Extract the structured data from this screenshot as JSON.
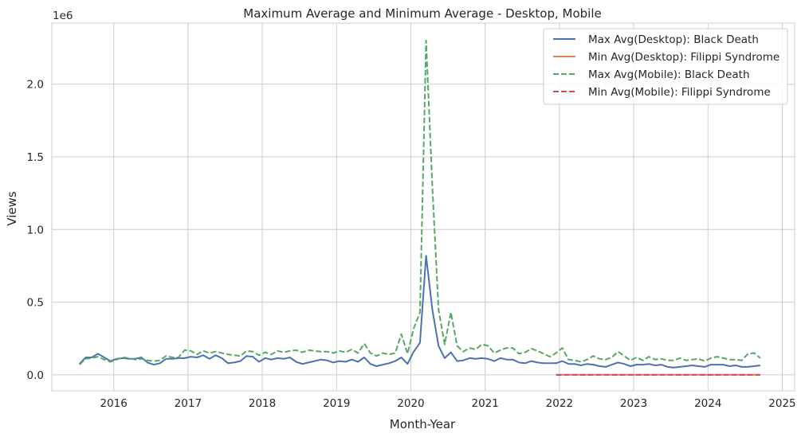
{
  "chart_data": {
    "type": "line",
    "title": "Maximum Average and Minimum Average - Desktop, Mobile",
    "xlabel": "Month-Year",
    "ylabel": "Views",
    "y_offset_label": "1e6",
    "xlim": [
      "2015-03-01",
      "2025-03-01"
    ],
    "ylim": [
      -110000,
      2420000
    ],
    "x_ticks": [
      "2016",
      "2017",
      "2018",
      "2019",
      "2020",
      "2021",
      "2022",
      "2023",
      "2024",
      "2025"
    ],
    "y_ticks": [
      {
        "value": 0,
        "label": "0.0"
      },
      {
        "value": 500000,
        "label": "0.5"
      },
      {
        "value": 1000000,
        "label": "1.0"
      },
      {
        "value": 1500000,
        "label": "1.5"
      },
      {
        "value": 2000000,
        "label": "2.0"
      }
    ],
    "grid": true,
    "legend_position": "top-right",
    "series": [
      {
        "name": "Max Avg(Desktop): Black Death",
        "color": "#4c72b0",
        "dash": "solid",
        "x": [
          "2015-07",
          "2015-08",
          "2015-09",
          "2015-10",
          "2015-11",
          "2015-12",
          "2016-01",
          "2016-02",
          "2016-03",
          "2016-04",
          "2016-05",
          "2016-06",
          "2016-07",
          "2016-08",
          "2016-09",
          "2016-10",
          "2016-11",
          "2016-12",
          "2017-01",
          "2017-02",
          "2017-03",
          "2017-04",
          "2017-05",
          "2017-06",
          "2017-07",
          "2017-08",
          "2017-09",
          "2017-10",
          "2017-11",
          "2017-12",
          "2018-01",
          "2018-02",
          "2018-03",
          "2018-04",
          "2018-05",
          "2018-06",
          "2018-07",
          "2018-08",
          "2018-09",
          "2018-10",
          "2018-11",
          "2018-12",
          "2019-01",
          "2019-02",
          "2019-03",
          "2019-04",
          "2019-05",
          "2019-06",
          "2019-07",
          "2019-08",
          "2019-09",
          "2019-10",
          "2019-11",
          "2019-12",
          "2020-01",
          "2020-02",
          "2020-03",
          "2020-04",
          "2020-05",
          "2020-06",
          "2020-07",
          "2020-08",
          "2020-09",
          "2020-10",
          "2020-11",
          "2020-12",
          "2021-01",
          "2021-02",
          "2021-03",
          "2021-04",
          "2021-05",
          "2021-06",
          "2021-07",
          "2021-08",
          "2021-09",
          "2021-10",
          "2021-11",
          "2021-12",
          "2022-01",
          "2022-02",
          "2022-03",
          "2022-04",
          "2022-05",
          "2022-06",
          "2022-07",
          "2022-08",
          "2022-09",
          "2022-10",
          "2022-11",
          "2022-12",
          "2023-01",
          "2023-02",
          "2023-03",
          "2023-04",
          "2023-05",
          "2023-06",
          "2023-07",
          "2023-08",
          "2023-09",
          "2023-10",
          "2023-11",
          "2023-12",
          "2024-01",
          "2024-02",
          "2024-03",
          "2024-04",
          "2024-05",
          "2024-06",
          "2024-07",
          "2024-08",
          "2024-09"
        ],
        "values": [
          75000,
          120000,
          120000,
          145000,
          120000,
          95000,
          110000,
          115000,
          110000,
          110000,
          120000,
          85000,
          70000,
          80000,
          110000,
          110000,
          115000,
          115000,
          125000,
          120000,
          135000,
          110000,
          135000,
          115000,
          80000,
          85000,
          95000,
          130000,
          125000,
          90000,
          115000,
          105000,
          115000,
          110000,
          120000,
          90000,
          75000,
          85000,
          95000,
          105000,
          100000,
          85000,
          95000,
          90000,
          105000,
          90000,
          120000,
          75000,
          60000,
          70000,
          80000,
          95000,
          120000,
          75000,
          160000,
          220000,
          820000,
          450000,
          200000,
          115000,
          155000,
          95000,
          100000,
          115000,
          110000,
          115000,
          110000,
          95000,
          115000,
          105000,
          105000,
          85000,
          80000,
          95000,
          85000,
          80000,
          80000,
          80000,
          95000,
          75000,
          75000,
          65000,
          75000,
          70000,
          60000,
          55000,
          70000,
          85000,
          75000,
          60000,
          70000,
          70000,
          75000,
          65000,
          70000,
          55000,
          50000,
          55000,
          60000,
          65000,
          60000,
          55000,
          70000,
          70000,
          70000,
          60000,
          65000,
          55000,
          55000,
          60000,
          65000
        ]
      },
      {
        "name": "Min Avg(Desktop): Filippi Syndrome",
        "color": "#dd8452",
        "dash": "solid",
        "x": [
          "2021-12",
          "2022-06",
          "2022-12",
          "2023-06",
          "2023-12",
          "2024-06",
          "2024-09"
        ],
        "values": [
          200,
          200,
          200,
          200,
          200,
          200,
          200
        ]
      },
      {
        "name": "Max Avg(Mobile): Black Death",
        "color": "#55a868",
        "dash": "dashed",
        "x": [
          "2015-07",
          "2015-08",
          "2015-09",
          "2015-10",
          "2015-11",
          "2015-12",
          "2016-01",
          "2016-02",
          "2016-03",
          "2016-04",
          "2016-05",
          "2016-06",
          "2016-07",
          "2016-08",
          "2016-09",
          "2016-10",
          "2016-11",
          "2016-12",
          "2017-01",
          "2017-02",
          "2017-03",
          "2017-04",
          "2017-05",
          "2017-06",
          "2017-07",
          "2017-08",
          "2017-09",
          "2017-10",
          "2017-11",
          "2017-12",
          "2018-01",
          "2018-02",
          "2018-03",
          "2018-04",
          "2018-05",
          "2018-06",
          "2018-07",
          "2018-08",
          "2018-09",
          "2018-10",
          "2018-11",
          "2018-12",
          "2019-01",
          "2019-02",
          "2019-03",
          "2019-04",
          "2019-05",
          "2019-06",
          "2019-07",
          "2019-08",
          "2019-09",
          "2019-10",
          "2019-11",
          "2019-12",
          "2020-01",
          "2020-02",
          "2020-03",
          "2020-04",
          "2020-05",
          "2020-06",
          "2020-07",
          "2020-08",
          "2020-09",
          "2020-10",
          "2020-11",
          "2020-12",
          "2021-01",
          "2021-02",
          "2021-03",
          "2021-04",
          "2021-05",
          "2021-06",
          "2021-07",
          "2021-08",
          "2021-09",
          "2021-10",
          "2021-11",
          "2021-12",
          "2022-01",
          "2022-02",
          "2022-03",
          "2022-04",
          "2022-05",
          "2022-06",
          "2022-07",
          "2022-08",
          "2022-09",
          "2022-10",
          "2022-11",
          "2022-12",
          "2023-01",
          "2023-02",
          "2023-03",
          "2023-04",
          "2023-05",
          "2023-06",
          "2023-07",
          "2023-08",
          "2023-09",
          "2023-10",
          "2023-11",
          "2023-12",
          "2024-01",
          "2024-02",
          "2024-03",
          "2024-04",
          "2024-05",
          "2024-06",
          "2024-07",
          "2024-08",
          "2024-09"
        ],
        "values": [
          70000,
          110000,
          115000,
          125000,
          105000,
          90000,
          105000,
          120000,
          115000,
          105000,
          110000,
          100000,
          95000,
          100000,
          130000,
          120000,
          120000,
          170000,
          165000,
          140000,
          165000,
          150000,
          160000,
          150000,
          140000,
          135000,
          130000,
          165000,
          160000,
          135000,
          155000,
          140000,
          165000,
          155000,
          165000,
          170000,
          155000,
          170000,
          165000,
          160000,
          160000,
          150000,
          165000,
          155000,
          175000,
          150000,
          215000,
          150000,
          130000,
          150000,
          140000,
          150000,
          280000,
          145000,
          320000,
          430000,
          2300000,
          1300000,
          450000,
          210000,
          430000,
          200000,
          160000,
          185000,
          175000,
          210000,
          200000,
          150000,
          170000,
          185000,
          185000,
          145000,
          155000,
          180000,
          165000,
          145000,
          125000,
          150000,
          185000,
          105000,
          100000,
          90000,
          105000,
          130000,
          110000,
          105000,
          120000,
          160000,
          130000,
          100000,
          120000,
          100000,
          125000,
          105000,
          110000,
          100000,
          100000,
          115000,
          100000,
          105000,
          110000,
          95000,
          115000,
          125000,
          115000,
          105000,
          105000,
          100000,
          145000,
          150000,
          115000
        ]
      },
      {
        "name": "Min Avg(Mobile): Filippi Syndrome",
        "color": "#c44e52",
        "dash": "dashed",
        "x": [
          "2021-12",
          "2022-06",
          "2022-12",
          "2023-06",
          "2023-12",
          "2024-06",
          "2024-09"
        ],
        "values": [
          300,
          300,
          300,
          300,
          300,
          300,
          300
        ]
      }
    ]
  }
}
